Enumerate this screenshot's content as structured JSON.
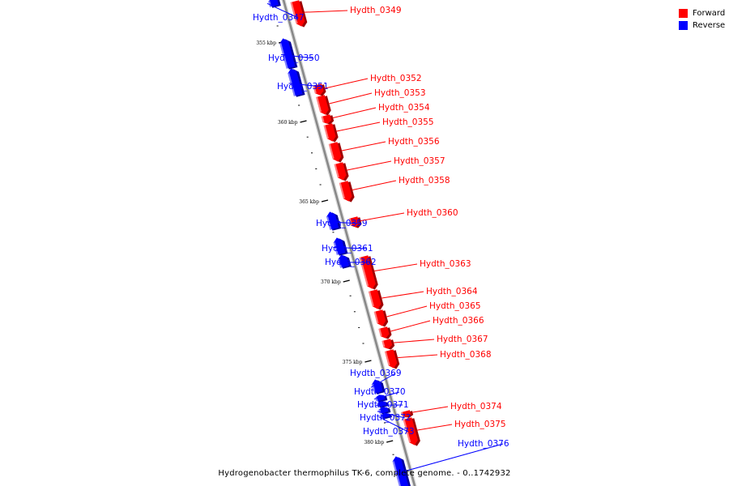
{
  "caption": "Hydrogenobacter thermophilus TK-6, complete genome. - 0..1742932",
  "legend": {
    "items": [
      {
        "label": "Forward",
        "color": "#ff0000"
      },
      {
        "label": "Reverse",
        "color": "#0000ff"
      }
    ]
  },
  "colors": {
    "forward": "#ff0000",
    "reverse": "#0000ff",
    "axis": "#888888"
  },
  "scale": {
    "unit": "kbp",
    "major_tick_interval_kbp": 5
  },
  "ticks": [
    {
      "label": "355 kbp"
    },
    {
      "label": "360 kbp"
    },
    {
      "label": "365 kbp"
    },
    {
      "label": "370 kbp"
    },
    {
      "label": "375 kbp"
    },
    {
      "label": "380 kbp"
    }
  ],
  "genes": [
    {
      "label": "Hydth_0347",
      "strand": "reverse"
    },
    {
      "label": "Hydth_0349",
      "strand": "forward"
    },
    {
      "label": "Hydth_0350",
      "strand": "reverse"
    },
    {
      "label": "Hydth_0351",
      "strand": "reverse"
    },
    {
      "label": "Hydth_0352",
      "strand": "forward"
    },
    {
      "label": "Hydth_0353",
      "strand": "forward"
    },
    {
      "label": "Hydth_0354",
      "strand": "forward"
    },
    {
      "label": "Hydth_0355",
      "strand": "forward"
    },
    {
      "label": "Hydth_0356",
      "strand": "forward"
    },
    {
      "label": "Hydth_0357",
      "strand": "forward"
    },
    {
      "label": "Hydth_0358",
      "strand": "forward"
    },
    {
      "label": "Hydth_0359",
      "strand": "reverse"
    },
    {
      "label": "Hydth_0360",
      "strand": "forward"
    },
    {
      "label": "Hydth_0361",
      "strand": "reverse"
    },
    {
      "label": "Hydth_0362",
      "strand": "reverse"
    },
    {
      "label": "Hydth_0363",
      "strand": "forward"
    },
    {
      "label": "Hydth_0364",
      "strand": "forward"
    },
    {
      "label": "Hydth_0365",
      "strand": "forward"
    },
    {
      "label": "Hydth_0366",
      "strand": "forward"
    },
    {
      "label": "Hydth_0367",
      "strand": "forward"
    },
    {
      "label": "Hydth_0368",
      "strand": "forward"
    },
    {
      "label": "Hydth_0369",
      "strand": "reverse"
    },
    {
      "label": "Hydth_0370",
      "strand": "reverse"
    },
    {
      "label": "Hydth_0371",
      "strand": "reverse"
    },
    {
      "label": "Hydth_0372",
      "strand": "reverse"
    },
    {
      "label": "Hydth_0373",
      "strand": "reverse"
    },
    {
      "label": "Hydth_0374",
      "strand": "forward"
    },
    {
      "label": "Hydth_0375",
      "strand": "forward"
    },
    {
      "label": "Hydth_0376",
      "strand": "reverse"
    }
  ]
}
